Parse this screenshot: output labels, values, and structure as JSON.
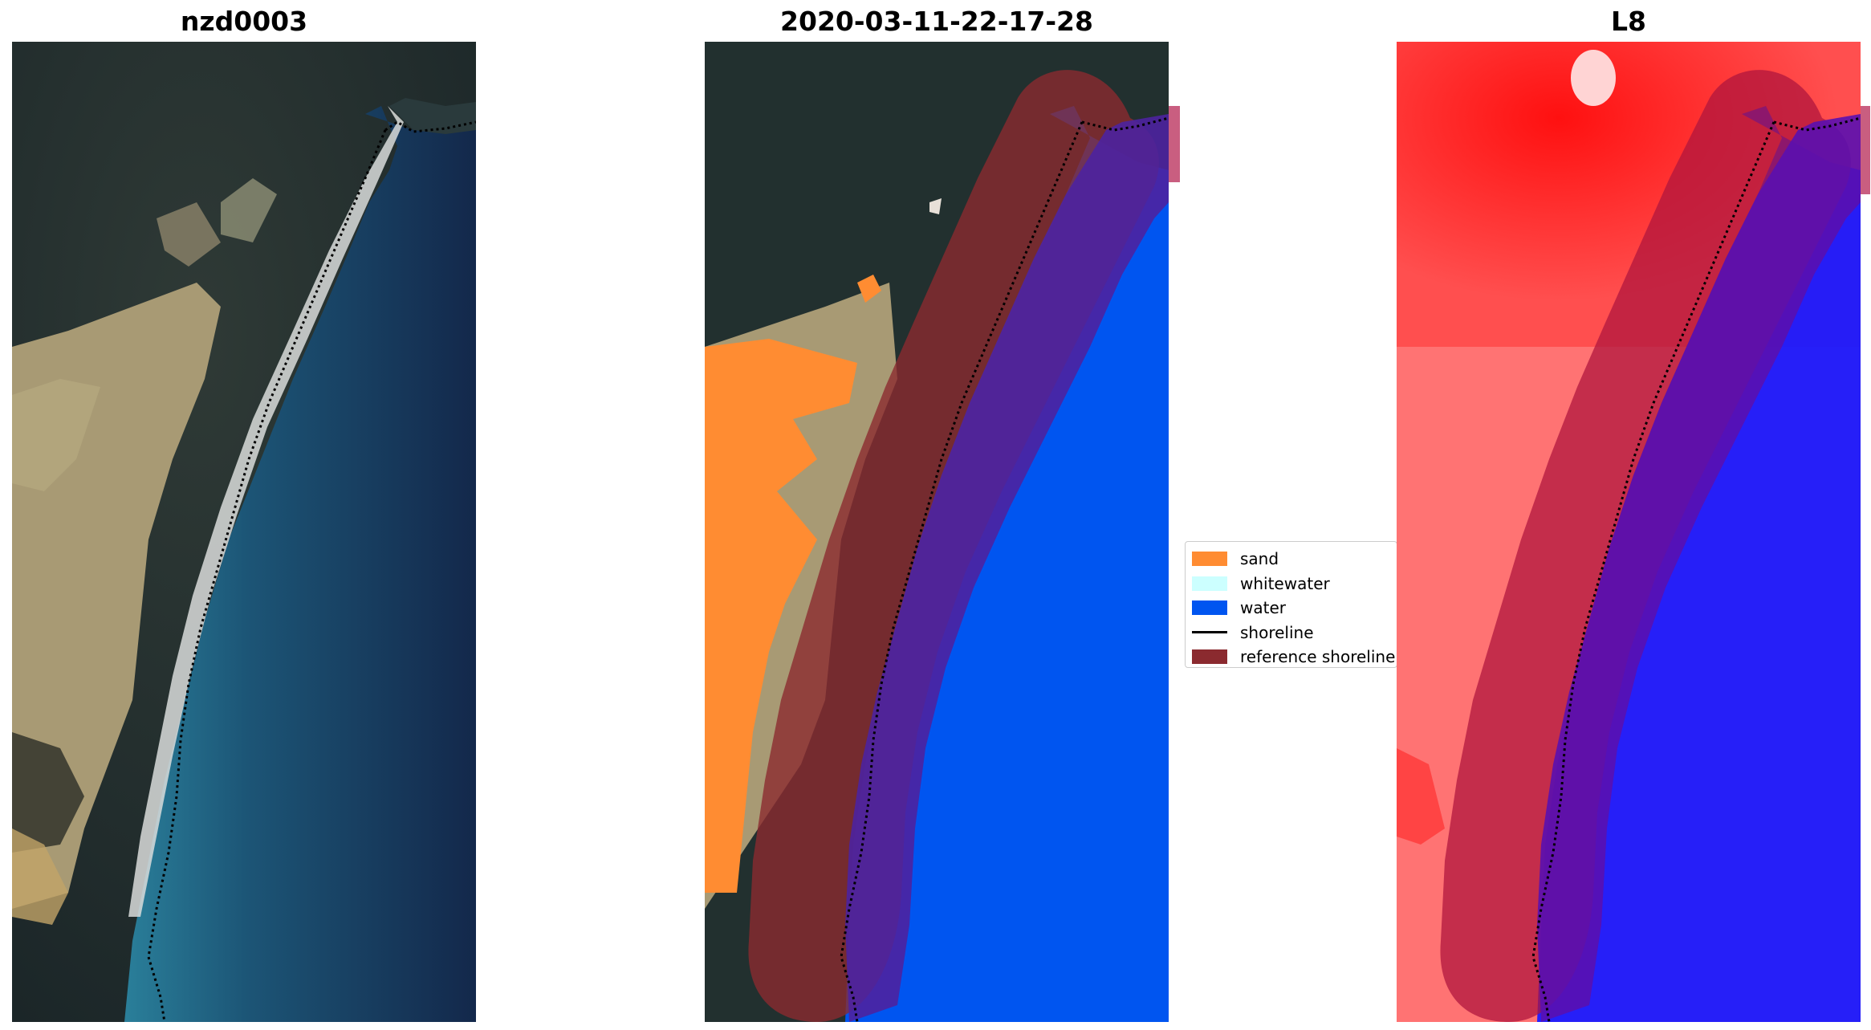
{
  "panels": {
    "rgb": {
      "title": "nzd0003"
    },
    "classification": {
      "title": "2020-03-11-22-17-28"
    },
    "index": {
      "title": "L8"
    }
  },
  "legend": {
    "items": [
      {
        "label": "sand",
        "color": "#ff8c32",
        "kind": "patch"
      },
      {
        "label": "whitewater",
        "color": "#ccffff",
        "kind": "patch"
      },
      {
        "label": "water",
        "color": "#0055f0",
        "kind": "patch"
      },
      {
        "label": "shoreline",
        "color": "#000000",
        "kind": "line"
      },
      {
        "label": "reference shoreline",
        "color": "#8b2a2f",
        "kind": "patch"
      }
    ]
  },
  "colors": {
    "sand": "#ff8c32",
    "whitewater": "#ccffff",
    "water": "#0055f0",
    "reference_buffer": "#8b2a2f",
    "shoreline": "#000000"
  }
}
